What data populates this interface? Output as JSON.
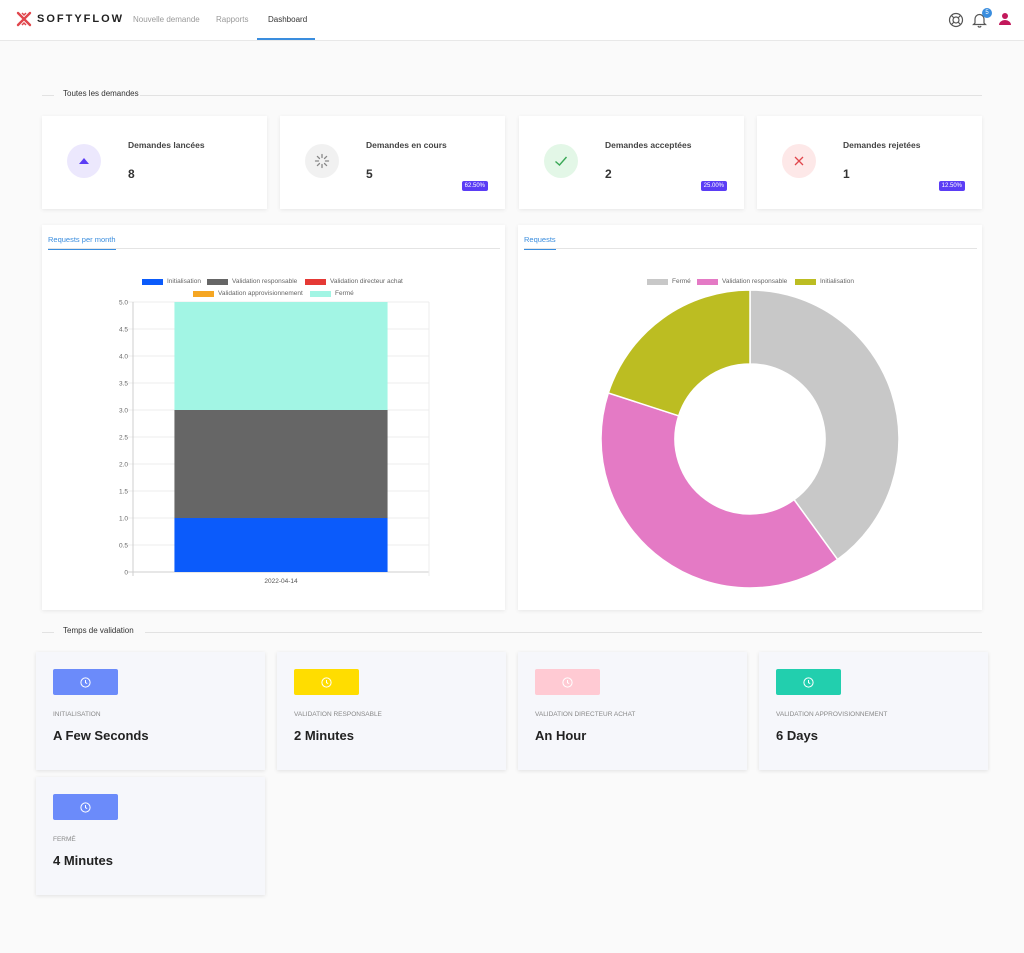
{
  "app": {
    "brand": "SOFTYFLOW"
  },
  "nav": {
    "items": [
      {
        "label": "Nouvelle demande"
      },
      {
        "label": "Rapports"
      },
      {
        "label": "Dashboard"
      }
    ],
    "active": "Dashboard",
    "notification_count": "5",
    "icons": [
      "help-icon",
      "bell-icon",
      "user-icon"
    ]
  },
  "sections": {
    "demandes": "Toutes les demandes",
    "validation": "Temps de validation"
  },
  "stats": [
    {
      "label": "Demandes lancées",
      "value": "8",
      "badge": "",
      "icon": "arrow-up-icon",
      "icon_color": "#5b3df5",
      "bg": "#ece8fd"
    },
    {
      "label": "Demandes en cours",
      "value": "5",
      "badge": "62.50%",
      "icon": "spinner-icon",
      "icon_color": "#888888",
      "bg": "#f1f1f1"
    },
    {
      "label": "Demandes acceptées",
      "value": "2",
      "badge": "25.00%",
      "icon": "check-icon",
      "icon_color": "#3aa856",
      "bg": "#e3f7e7"
    },
    {
      "label": "Demandes rejetées",
      "value": "1",
      "badge": "12.50%",
      "icon": "x-icon",
      "icon_color": "#e0464c",
      "bg": "#fde8e8"
    }
  ],
  "panels": {
    "bar_tab": "Requests per month",
    "pie_tab": "Requests"
  },
  "chart_data": [
    {
      "type": "bar",
      "stacked": true,
      "categories": [
        "2022-04-14"
      ],
      "series": [
        {
          "name": "Initialisation",
          "values": [
            1
          ],
          "color": "#0b5bfb"
        },
        {
          "name": "Validation responsable",
          "values": [
            2
          ],
          "color": "#666666"
        },
        {
          "name": "Validation directeur achat",
          "values": [
            0
          ],
          "color": "#e53935"
        },
        {
          "name": "Validation approvisionnement",
          "values": [
            0
          ],
          "color": "#f5a623"
        },
        {
          "name": "Fermé",
          "values": [
            2
          ],
          "color": "#a2f5e4"
        }
      ],
      "ylim": [
        0,
        5
      ],
      "yticks": [
        "0",
        "0.5",
        "1.0",
        "1.5",
        "2.0",
        "2.5",
        "3.0",
        "3.5",
        "4.0",
        "4.5",
        "5.0"
      ],
      "grid": true,
      "legend": "top"
    },
    {
      "type": "pie",
      "donut": true,
      "labels": [
        "Fermé",
        "Validation responsable",
        "Initialisation"
      ],
      "values": [
        2,
        2,
        1
      ],
      "colors": [
        "#c8c8c8",
        "#e47ac5",
        "#bcbd22"
      ],
      "legend": "top"
    }
  ],
  "times": [
    {
      "label": "Initialisation",
      "value": "A Few Seconds",
      "color": "#6b8bfa"
    },
    {
      "label": "Validation responsable",
      "value": "2 Minutes",
      "color": "#ffdd00"
    },
    {
      "label": "Validation directeur achat",
      "value": "An Hour",
      "color": "#ffcad3"
    },
    {
      "label": "Validation approvisionnement",
      "value": "6 Days",
      "color": "#22cfae"
    },
    {
      "label": "Fermé",
      "value": "4 Minutes",
      "color": "#6b8bfa"
    }
  ]
}
